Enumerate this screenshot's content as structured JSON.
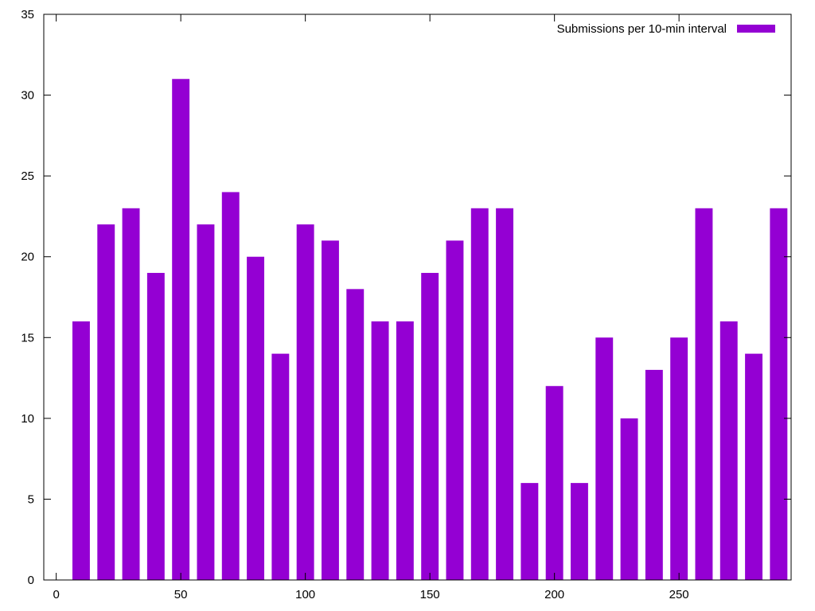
{
  "chart_data": {
    "type": "bar",
    "title": "",
    "xlabel": "",
    "ylabel": "",
    "xlim": [
      -5,
      295
    ],
    "ylim": [
      0,
      35
    ],
    "x_ticks": [
      0,
      50,
      100,
      150,
      200,
      250
    ],
    "y_ticks": [
      0,
      5,
      10,
      15,
      20,
      25,
      30,
      35
    ],
    "bar_width_units": 7,
    "grid": false,
    "legend_position": "top-right",
    "series": [
      {
        "name": "Submissions per 10-min interval",
        "color": "#9400d3",
        "x": [
          10,
          20,
          30,
          40,
          50,
          60,
          70,
          80,
          90,
          100,
          110,
          120,
          130,
          140,
          150,
          160,
          170,
          180,
          190,
          200,
          210,
          220,
          230,
          240,
          250,
          260,
          270,
          280,
          290
        ],
        "values": [
          16,
          22,
          23,
          19,
          31,
          22,
          24,
          20,
          14,
          22,
          21,
          18,
          16,
          16,
          19,
          21,
          23,
          23,
          6,
          12,
          6,
          15,
          10,
          13,
          15,
          23,
          16,
          14,
          23
        ]
      }
    ]
  }
}
